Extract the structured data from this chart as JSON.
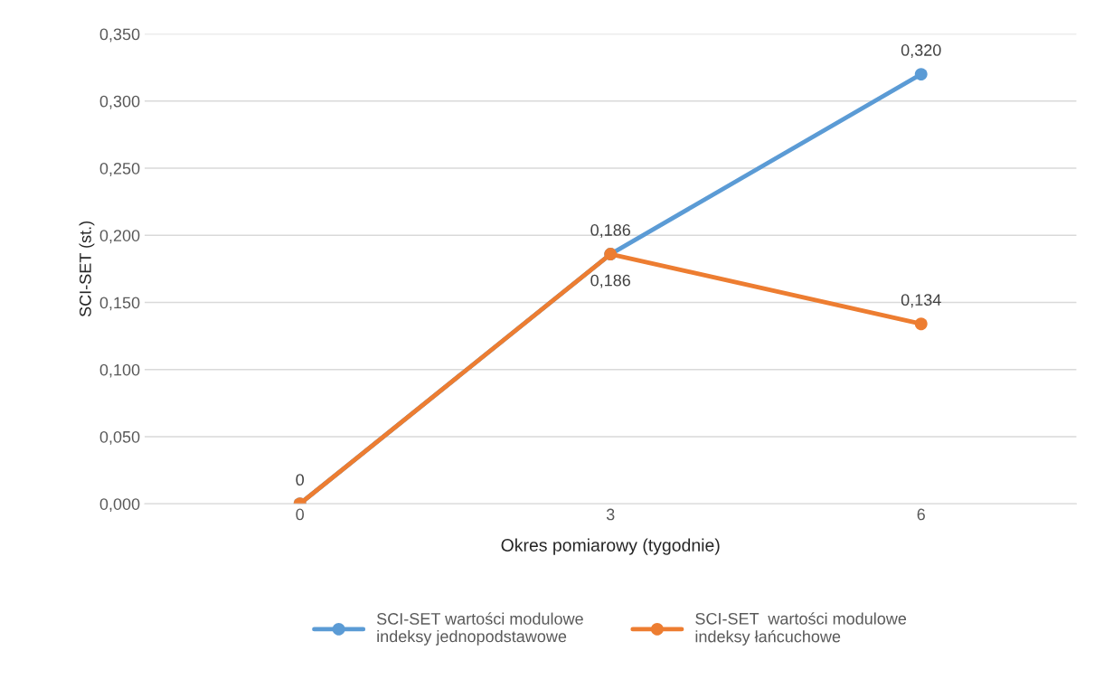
{
  "chart_data": {
    "type": "line",
    "xlabel": "Okres pomiarowy (tygodnie)",
    "ylabel": "SCI-SET (st.)",
    "categories": [
      "0",
      "3",
      "6"
    ],
    "series": [
      {
        "name": "SCI-SET wartości modulowe\nindeksy jednopodstawowe",
        "color": "#5b9bd5",
        "values": [
          0,
          0.186,
          0.32
        ],
        "value_labels": [
          "0",
          "0,186",
          "0,320"
        ]
      },
      {
        "name": "SCI-SET  wartości modulowe\nindeksy łańcuchowe",
        "color": "#ed7d31",
        "values": [
          0,
          0.186,
          0.134
        ],
        "value_labels": [
          null,
          "0,186",
          "0,134"
        ]
      }
    ],
    "ylim": [
      0,
      0.35
    ],
    "yticks": [
      {
        "value": 0,
        "label": "0,000"
      },
      {
        "value": 0.05,
        "label": "0,050"
      },
      {
        "value": 0.1,
        "label": "0,100"
      },
      {
        "value": 0.15,
        "label": "0,150"
      },
      {
        "value": 0.2,
        "label": "0,200"
      },
      {
        "value": 0.25,
        "label": "0,250"
      },
      {
        "value": 0.3,
        "label": "0,300"
      },
      {
        "value": 0.35,
        "label": "0,350"
      }
    ],
    "grid": "y",
    "legend": "bottom",
    "marker": "circle",
    "line_style": "solid"
  }
}
